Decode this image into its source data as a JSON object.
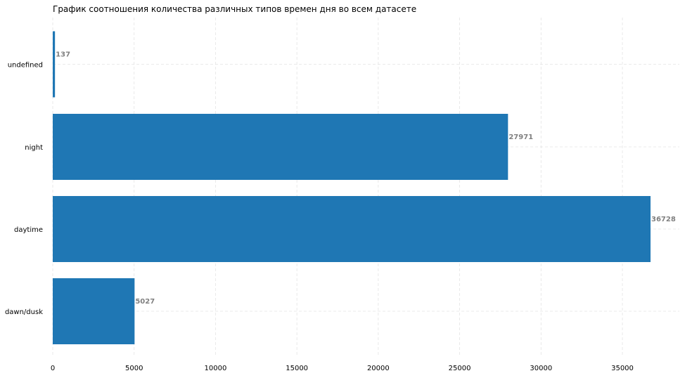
{
  "chart_data": {
    "type": "bar",
    "orientation": "horizontal",
    "title": "График соотношения количества различных типов времен дня во всем датасете",
    "xlabel": "",
    "ylabel": "",
    "categories": [
      "undefined",
      "night",
      "daytime",
      "dawn/dusk"
    ],
    "values": [
      137,
      27971,
      36728,
      5027
    ],
    "data_labels": [
      "137",
      "27971",
      "36728",
      "5027"
    ],
    "xlim": [
      0,
      38500
    ],
    "xticks": [
      0,
      5000,
      10000,
      15000,
      20000,
      25000,
      30000,
      35000
    ],
    "xtick_labels": [
      "0",
      "5000",
      "10000",
      "15000",
      "20000",
      "25000",
      "30000",
      "35000"
    ],
    "grid": true,
    "legend": "none",
    "colors": {
      "bar": "#1f77b4",
      "data_label": "#808080",
      "grid": "#d9d9d9",
      "text": "#000000"
    }
  }
}
